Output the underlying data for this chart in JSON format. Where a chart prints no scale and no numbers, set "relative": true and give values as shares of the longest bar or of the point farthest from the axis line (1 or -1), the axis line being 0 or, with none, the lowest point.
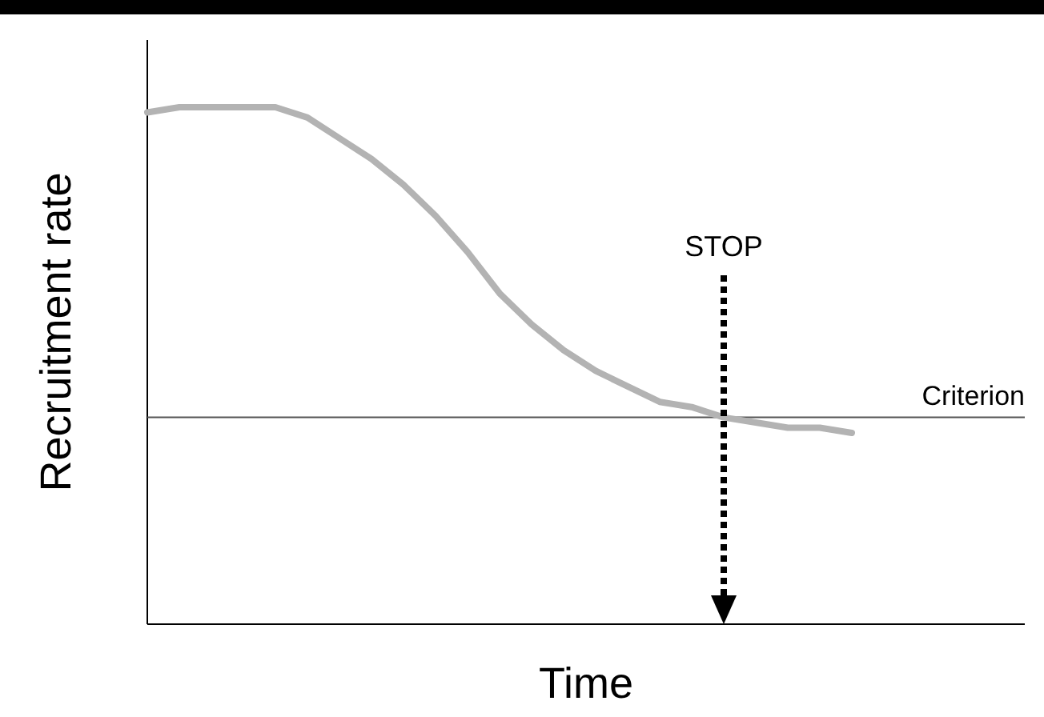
{
  "chart_data": {
    "type": "line",
    "relative": true,
    "xlabel": "Time",
    "ylabel": "Recruitment rate",
    "categories": [
      null,
      null,
      null,
      null,
      null,
      null,
      null,
      null,
      null,
      null,
      null,
      null,
      null,
      null,
      null,
      null,
      null,
      null,
      null,
      null,
      null,
      null,
      null,
      null,
      null,
      null,
      null,
      null
    ],
    "series": [
      {
        "color": "#b3b3b3",
        "values": [
          0.99,
          1.0,
          1.0,
          1.0,
          1.0,
          0.98,
          0.94,
          0.9,
          0.85,
          0.79,
          0.72,
          0.64,
          0.58,
          0.53,
          0.49,
          0.46,
          0.43,
          0.42,
          0.4,
          0.39,
          0.38,
          0.38,
          0.37,
          null,
          null,
          null,
          null,
          null
        ]
      }
    ],
    "ref_lines": [
      {
        "axis": "y",
        "value": 0.4,
        "label": "Criterion",
        "color": "#555555"
      }
    ],
    "annotations": [
      "STOP"
    ]
  }
}
